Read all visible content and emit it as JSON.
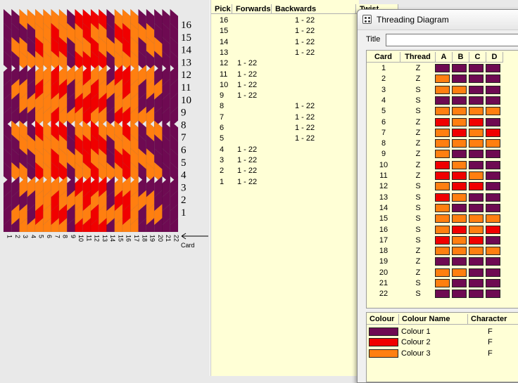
{
  "colors": {
    "colour1": "#6e0a52",
    "colour2": "#f00000",
    "colour3": "#ff7f10"
  },
  "weave": {
    "row_labels": [
      "16",
      "15",
      "14",
      "13",
      "12",
      "11",
      "10",
      "9",
      "8",
      "7",
      "6",
      "5",
      "4",
      "3",
      "2",
      "1"
    ],
    "card_labels": [
      "1",
      "2",
      "3",
      "4",
      "5",
      "6",
      "7",
      "8",
      "9",
      "10",
      "11",
      "12",
      "13",
      "14",
      "15",
      "16",
      "17",
      "18",
      "19",
      "20",
      "21",
      "22"
    ],
    "card_axis_label": "Card"
  },
  "pick_table": {
    "headers": {
      "pick": "Pick",
      "forwards": "Forwards",
      "backwards": "Backwards",
      "twist": "Twist"
    },
    "rows": [
      {
        "pick": "16",
        "forwards": "",
        "backwards": "1 - 22"
      },
      {
        "pick": "15",
        "forwards": "",
        "backwards": "1 - 22"
      },
      {
        "pick": "14",
        "forwards": "",
        "backwards": "1 - 22"
      },
      {
        "pick": "13",
        "forwards": "",
        "backwards": "1 - 22"
      },
      {
        "pick": "12",
        "forwards": "1 - 22",
        "backwards": ""
      },
      {
        "pick": "11",
        "forwards": "1 - 22",
        "backwards": ""
      },
      {
        "pick": "10",
        "forwards": "1 - 22",
        "backwards": ""
      },
      {
        "pick": "9",
        "forwards": "1 - 22",
        "backwards": ""
      },
      {
        "pick": "8",
        "forwards": "",
        "backwards": "1 - 22"
      },
      {
        "pick": "7",
        "forwards": "",
        "backwards": "1 - 22"
      },
      {
        "pick": "6",
        "forwards": "",
        "backwards": "1 - 22"
      },
      {
        "pick": "5",
        "forwards": "",
        "backwards": "1 - 22"
      },
      {
        "pick": "4",
        "forwards": "1 - 22",
        "backwards": ""
      },
      {
        "pick": "3",
        "forwards": "1 - 22",
        "backwards": ""
      },
      {
        "pick": "2",
        "forwards": "1 - 22",
        "backwards": ""
      },
      {
        "pick": "1",
        "forwards": "1 - 22",
        "backwards": ""
      }
    ]
  },
  "threading_window": {
    "title": "Threading Diagram",
    "title_label": "Title",
    "title_value": "",
    "headers": {
      "card": "Card",
      "thread": "Thread",
      "a": "A",
      "b": "B",
      "c": "C",
      "d": "D"
    },
    "cards": [
      {
        "card": "1",
        "thread": "Z",
        "holes": [
          1,
          1,
          1,
          1
        ]
      },
      {
        "card": "2",
        "thread": "Z",
        "holes": [
          3,
          1,
          1,
          1
        ]
      },
      {
        "card": "3",
        "thread": "S",
        "holes": [
          3,
          3,
          1,
          1
        ]
      },
      {
        "card": "4",
        "thread": "S",
        "holes": [
          1,
          1,
          1,
          1
        ]
      },
      {
        "card": "5",
        "thread": "S",
        "holes": [
          3,
          3,
          3,
          3
        ]
      },
      {
        "card": "6",
        "thread": "Z",
        "holes": [
          2,
          3,
          2,
          1
        ]
      },
      {
        "card": "7",
        "thread": "Z",
        "holes": [
          3,
          2,
          3,
          2
        ]
      },
      {
        "card": "8",
        "thread": "Z",
        "holes": [
          3,
          3,
          3,
          3
        ]
      },
      {
        "card": "9",
        "thread": "Z",
        "holes": [
          3,
          1,
          1,
          1
        ]
      },
      {
        "card": "10",
        "thread": "Z",
        "holes": [
          2,
          3,
          1,
          1
        ]
      },
      {
        "card": "11",
        "thread": "Z",
        "holes": [
          2,
          2,
          3,
          1
        ]
      },
      {
        "card": "12",
        "thread": "S",
        "holes": [
          3,
          2,
          2,
          1
        ]
      },
      {
        "card": "13",
        "thread": "S",
        "holes": [
          2,
          3,
          1,
          1
        ]
      },
      {
        "card": "14",
        "thread": "S",
        "holes": [
          3,
          1,
          1,
          1
        ]
      },
      {
        "card": "15",
        "thread": "S",
        "holes": [
          3,
          3,
          3,
          3
        ]
      },
      {
        "card": "16",
        "thread": "S",
        "holes": [
          3,
          2,
          3,
          2
        ]
      },
      {
        "card": "17",
        "thread": "S",
        "holes": [
          2,
          3,
          2,
          1
        ]
      },
      {
        "card": "18",
        "thread": "Z",
        "holes": [
          3,
          3,
          3,
          3
        ]
      },
      {
        "card": "19",
        "thread": "Z",
        "holes": [
          1,
          1,
          1,
          1
        ]
      },
      {
        "card": "20",
        "thread": "Z",
        "holes": [
          3,
          3,
          1,
          1
        ]
      },
      {
        "card": "21",
        "thread": "S",
        "holes": [
          3,
          1,
          1,
          1
        ]
      },
      {
        "card": "22",
        "thread": "S",
        "holes": [
          1,
          1,
          1,
          1
        ]
      }
    ]
  },
  "colour_table": {
    "headers": {
      "colour": "Colour",
      "name": "Colour Name",
      "character": "Character"
    },
    "rows": [
      {
        "color": "#6e0a52",
        "name": "Colour 1",
        "character": "F"
      },
      {
        "color": "#f00000",
        "name": "Colour 2",
        "character": "F"
      },
      {
        "color": "#ff7f10",
        "name": "Colour 3",
        "character": "F"
      }
    ]
  }
}
